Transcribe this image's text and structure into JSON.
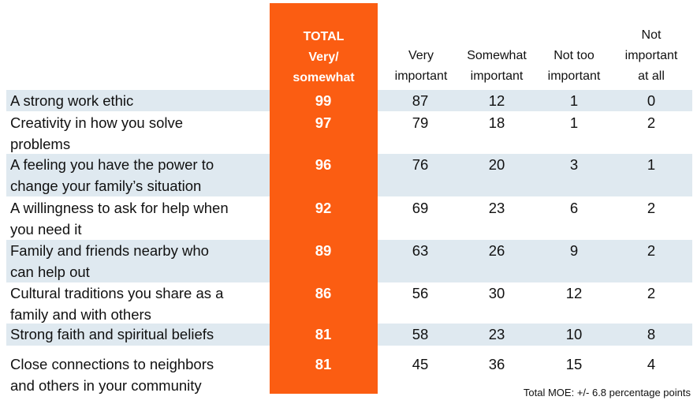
{
  "headers": {
    "total": [
      "TOTAL",
      "Very/",
      "somewhat"
    ],
    "very_important": [
      "Very",
      "important"
    ],
    "somewhat_important": [
      "Somewhat",
      "important"
    ],
    "not_too_important": [
      "Not too",
      "important"
    ],
    "not_important": [
      "Not",
      "important",
      "at all"
    ]
  },
  "footnote": "Total MOE: +/- 6.8 percentage points",
  "colors": {
    "total_column": "#fb5d12",
    "row_stripe": "#dfe9f0"
  },
  "chart_data": {
    "type": "table",
    "columns": [
      "TOTAL Very/ somewhat",
      "Very important",
      "Somewhat important",
      "Not too important",
      "Not important at all"
    ],
    "rows": [
      {
        "label_lines": [
          "A strong work ethic"
        ],
        "values": [
          99,
          87,
          12,
          1,
          0
        ]
      },
      {
        "label_lines": [
          "Creativity in how you solve",
          "problems"
        ],
        "values": [
          97,
          79,
          18,
          1,
          2
        ]
      },
      {
        "label_lines": [
          "A feeling you have the power to",
          "change your family’s situation"
        ],
        "values": [
          96,
          76,
          20,
          3,
          1
        ]
      },
      {
        "label_lines": [
          "A willingness to ask for help when",
          "you need it"
        ],
        "values": [
          92,
          69,
          23,
          6,
          2
        ]
      },
      {
        "label_lines": [
          "Family and friends nearby who",
          "can help out"
        ],
        "values": [
          89,
          63,
          26,
          9,
          2
        ]
      },
      {
        "label_lines": [
          "Cultural traditions you share as a",
          "family and with others"
        ],
        "values": [
          86,
          56,
          30,
          12,
          2
        ]
      },
      {
        "label_lines": [
          "Strong faith and spiritual beliefs"
        ],
        "values": [
          81,
          58,
          23,
          10,
          8
        ]
      },
      {
        "label_lines": [
          "Close connections to neighbors",
          "and others in your community"
        ],
        "values": [
          81,
          45,
          36,
          15,
          4
        ]
      }
    ]
  }
}
